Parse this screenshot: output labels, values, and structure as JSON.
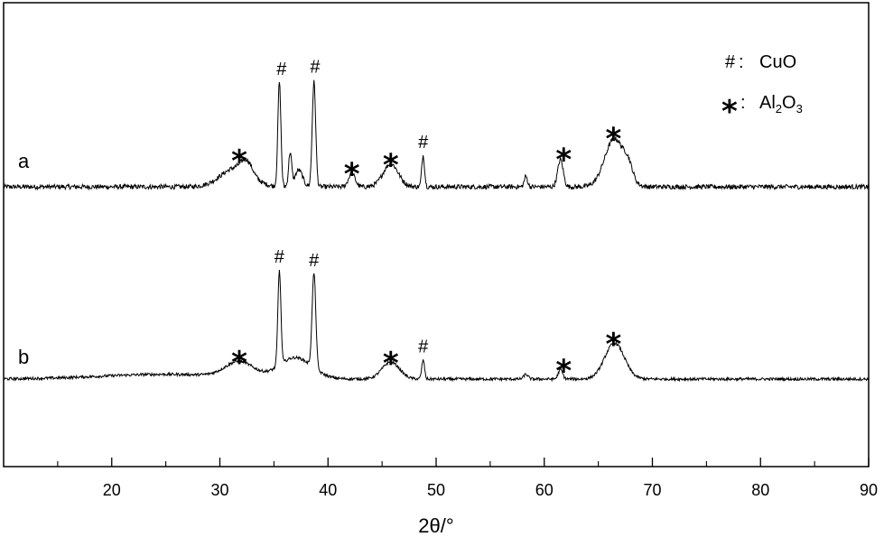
{
  "chart_data": {
    "type": "line",
    "xlabel": "2θ/°",
    "ylabel": "",
    "xlim": [
      10,
      90
    ],
    "x_ticks": [
      20,
      30,
      40,
      50,
      60,
      70,
      80,
      90
    ],
    "x_minor_ticks": [
      15,
      25,
      35,
      45,
      55,
      65,
      75,
      85
    ],
    "y_ticks_shown": false,
    "grid": false,
    "legend": {
      "position": "top-right",
      "entries": [
        {
          "symbol": "#",
          "sep": ":",
          "label": "CuO"
        },
        {
          "symbol": "*",
          "sep": ":",
          "label_main": "Al",
          "sub1": "2",
          "label_mid": "O",
          "sub2": "3"
        }
      ]
    },
    "series": [
      {
        "name": "a",
        "baseline": 0.0,
        "noise": 0.045,
        "peaks": [
          {
            "x": 31.5,
            "h": 0.18,
            "w": 1.4
          },
          {
            "x": 32.5,
            "h": 0.12,
            "w": 0.5
          },
          {
            "x": 35.5,
            "h": 1.0,
            "w": 0.14
          },
          {
            "x": 36.5,
            "h": 0.32,
            "w": 0.14
          },
          {
            "x": 37.3,
            "h": 0.16,
            "w": 0.35
          },
          {
            "x": 38.7,
            "h": 1.0,
            "w": 0.16
          },
          {
            "x": 42.2,
            "h": 0.13,
            "w": 0.3
          },
          {
            "x": 45.8,
            "h": 0.22,
            "w": 0.7
          },
          {
            "x": 48.8,
            "h": 0.3,
            "w": 0.13
          },
          {
            "x": 58.3,
            "h": 0.1,
            "w": 0.15
          },
          {
            "x": 61.5,
            "h": 0.26,
            "w": 0.25
          },
          {
            "x": 66.5,
            "h": 0.46,
            "w": 0.9
          },
          {
            "x": 67.8,
            "h": 0.12,
            "w": 0.4
          }
        ],
        "markers": [
          {
            "x": 31.8,
            "symbol": "*"
          },
          {
            "x": 35.7,
            "symbol": "#"
          },
          {
            "x": 38.8,
            "symbol": "#"
          },
          {
            "x": 42.2,
            "symbol": "*"
          },
          {
            "x": 45.8,
            "symbol": "*"
          },
          {
            "x": 48.8,
            "symbol": "#"
          },
          {
            "x": 61.8,
            "symbol": "*"
          },
          {
            "x": 66.4,
            "symbol": "*"
          }
        ]
      },
      {
        "name": "b",
        "baseline": 0.0,
        "noise": 0.03,
        "peaks": [
          {
            "x": 25.0,
            "h": 0.05,
            "w": 6.0
          },
          {
            "x": 31.8,
            "h": 0.16,
            "w": 1.3
          },
          {
            "x": 35.5,
            "h": 1.0,
            "w": 0.14
          },
          {
            "x": 37.0,
            "h": 0.22,
            "w": 1.5
          },
          {
            "x": 38.7,
            "h": 1.0,
            "w": 0.17
          },
          {
            "x": 45.8,
            "h": 0.18,
            "w": 0.8
          },
          {
            "x": 48.8,
            "h": 0.2,
            "w": 0.13
          },
          {
            "x": 58.3,
            "h": 0.05,
            "w": 0.2
          },
          {
            "x": 61.5,
            "h": 0.1,
            "w": 0.2
          },
          {
            "x": 66.5,
            "h": 0.38,
            "w": 0.9
          }
        ],
        "markers": [
          {
            "x": 31.8,
            "symbol": "*"
          },
          {
            "x": 35.5,
            "symbol": "#"
          },
          {
            "x": 38.7,
            "symbol": "#"
          },
          {
            "x": 45.8,
            "symbol": "*"
          },
          {
            "x": 48.8,
            "symbol": "#"
          },
          {
            "x": 61.8,
            "symbol": "*"
          },
          {
            "x": 66.4,
            "symbol": "*"
          }
        ]
      }
    ]
  }
}
